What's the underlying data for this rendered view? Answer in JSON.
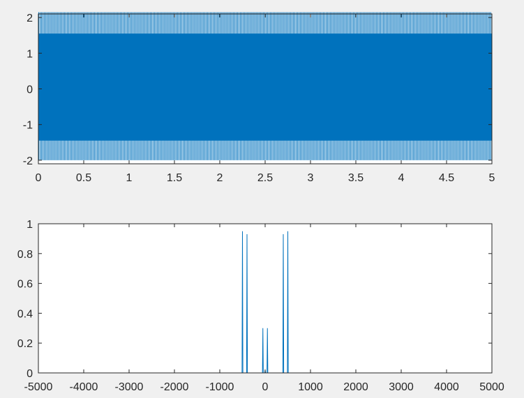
{
  "colors": {
    "figure_background": "#f0f0f0",
    "axes_background": "#ffffff",
    "axis_line": "#262626",
    "series": "#0072bd"
  },
  "chart_data": [
    {
      "type": "line",
      "title": "",
      "xlabel": "",
      "ylabel": "",
      "xlim": [
        0,
        5
      ],
      "ylim": [
        -2.1,
        2.1
      ],
      "grid": false,
      "x_ticks": [
        0,
        0.5,
        1,
        1.5,
        2,
        2.5,
        3,
        3.5,
        4,
        4.5,
        5
      ],
      "y_ticks": [
        -2,
        -1,
        0,
        1,
        2
      ],
      "series": [
        {
          "signal": "dense oscillation filling the axes",
          "envelope_max": 2.15,
          "envelope_min": -2.0,
          "solid_band": [
            -1.45,
            1.55
          ]
        }
      ]
    },
    {
      "type": "line",
      "title": "",
      "xlabel": "",
      "ylabel": "",
      "xlim": [
        -5000,
        5000
      ],
      "ylim": [
        0,
        1
      ],
      "grid": false,
      "x_ticks": [
        -5000,
        -4000,
        -3000,
        -2000,
        -1000,
        0,
        1000,
        2000,
        3000,
        4000,
        5000
      ],
      "y_ticks": [
        0,
        0.2,
        0.4,
        0.6,
        0.8,
        1
      ],
      "series": [
        {
          "peaks": [
            {
              "x": -500,
              "y": 0.95
            },
            {
              "x": -400,
              "y": 0.93
            },
            {
              "x": -50,
              "y": 0.3
            },
            {
              "x": 0,
              "y": 0.02
            },
            {
              "x": 50,
              "y": 0.3
            },
            {
              "x": 400,
              "y": 0.93
            },
            {
              "x": 500,
              "y": 0.95
            }
          ]
        }
      ]
    }
  ]
}
